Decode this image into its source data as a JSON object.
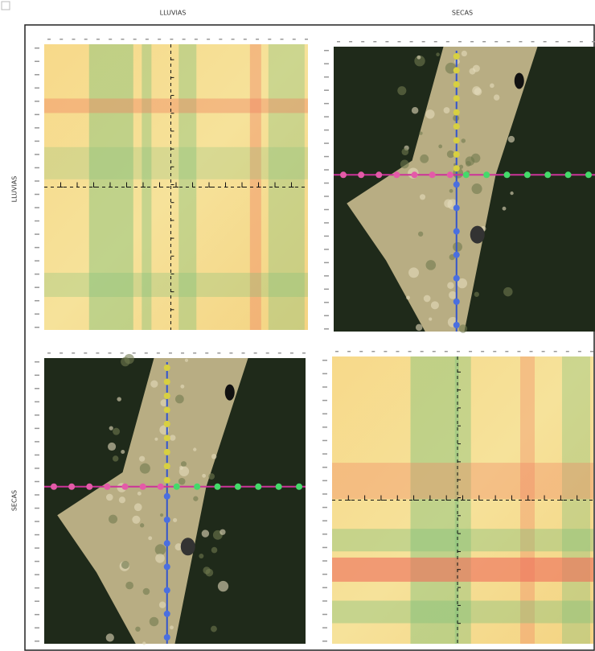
{
  "columns": [
    "LLUVIAS",
    "SECAS"
  ],
  "rows": [
    "LLUVIAS",
    "SECAS"
  ]
}
